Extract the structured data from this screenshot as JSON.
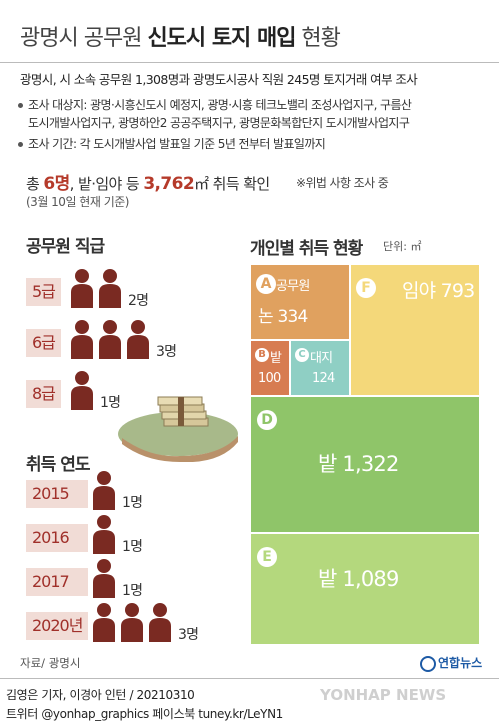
{
  "title": {
    "normal_pre": "광명시 공무원 ",
    "bold": "신도시 토지 매입",
    "normal_post": " 현황"
  },
  "lead": "광명시, 시 소속 공무원 1,308명과 광명도시공사 직원 245명 토지거래 여부 조사",
  "bullets": {
    "targets_label": "조사 대상지:",
    "targets_line1": "광명·시흥신도시 예정지, 광명·시흥 테크노밸리 조성사업지구, 구름산",
    "targets_line2": "도시개발사업지구, 광명하안2 공공주택지구, 광명문화복합단지 도시개발사업지구",
    "period_label": "조사 기간:",
    "period_text": "각 도시개발사업 발표일 기준 5년 전부터 발표일까지"
  },
  "total": {
    "pre": "총 ",
    "people": "6명",
    "mid": ", 밭·임야 등 ",
    "area": "3,762",
    "unit": "㎡",
    "post": " 취득 확인",
    "note": "※위법 사항 조사 중",
    "asof": "(3월 10일 현재 기준)"
  },
  "grades": {
    "title": "공무원 직급",
    "rows": [
      {
        "label": "5급",
        "count": 2,
        "count_label": "2명"
      },
      {
        "label": "6급",
        "count": 3,
        "count_label": "3명"
      },
      {
        "label": "8급",
        "count": 1,
        "count_label": "1명"
      }
    ]
  },
  "years": {
    "title": "취득 연도",
    "rows": [
      {
        "label": "2015",
        "count": 1,
        "count_label": "1명"
      },
      {
        "label": "2016",
        "count": 1,
        "count_label": "1명"
      },
      {
        "label": "2017",
        "count": 1,
        "count_label": "1명"
      },
      {
        "label": "2020년",
        "count": 3,
        "count_label": "3명"
      }
    ]
  },
  "individual": {
    "title": "개인별 취득 현황",
    "unit": "단위: ㎡",
    "cells": [
      {
        "letter": "A",
        "owner_label": "공무원",
        "type": "논",
        "value": 334,
        "color": "#e0a15f"
      },
      {
        "letter": "B",
        "type": "밭",
        "value": 100,
        "color": "#d77c51"
      },
      {
        "letter": "C",
        "type": "대지",
        "value": 124,
        "color": "#8fcfc4"
      },
      {
        "letter": "F",
        "type": "임야",
        "value": 793,
        "color": "#f4d87a"
      },
      {
        "letter": "D",
        "type": "밭",
        "value": 1322,
        "color": "#8fc569"
      },
      {
        "letter": "E",
        "type": "밭",
        "value": 1089,
        "color": "#b4d87d"
      }
    ]
  },
  "colors": {
    "person": "#7a2a22",
    "accent": "#b53a2a",
    "label_bg": "#f1dcd6"
  },
  "footer": {
    "source": "자료/ 광명시",
    "credit1": "김영은 기자, 이경아 인턴 / 20210310",
    "credit2": "트위터 @yonhap_graphics  페이스북 tuney.kr/LeYN1",
    "logo_text": "연합뉴스",
    "watermark": "YONHAP NEWS"
  }
}
